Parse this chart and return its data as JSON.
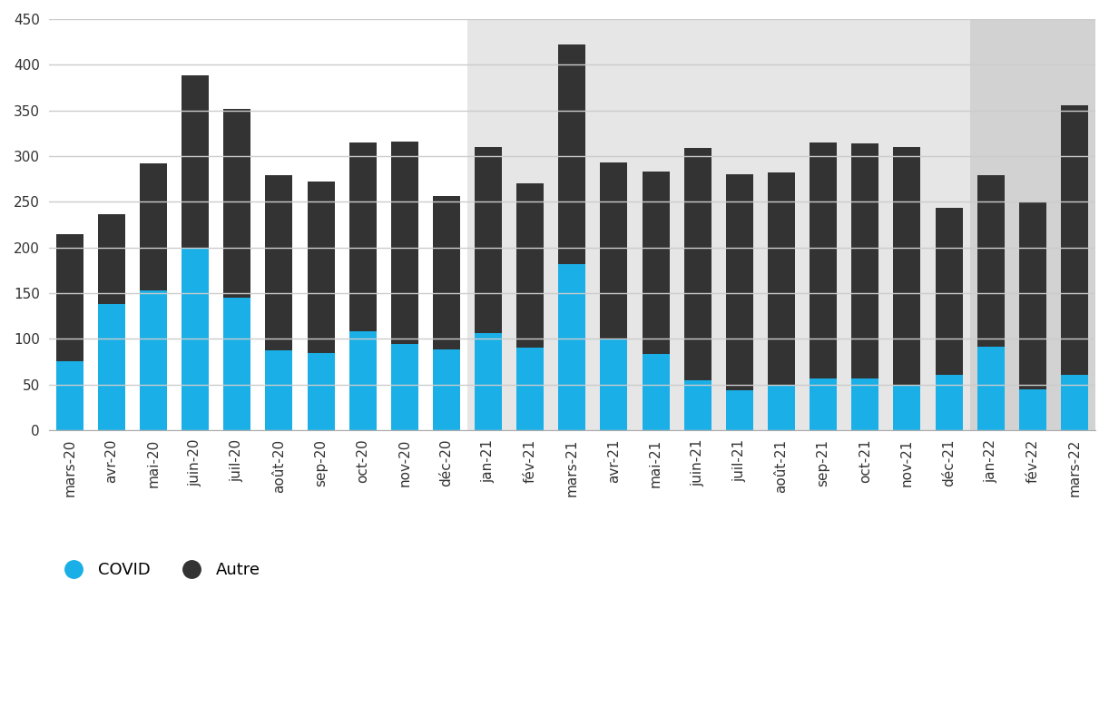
{
  "categories": [
    "mars-20",
    "avr-20",
    "mai-20",
    "juin-20",
    "juil-20",
    "août-20",
    "sep-20",
    "oct-20",
    "nov-20",
    "déc-20",
    "jan-21",
    "fév-21",
    "mars-21",
    "avr-21",
    "mai-21",
    "juin-21",
    "juil-21",
    "août-21",
    "sep-21",
    "oct-21",
    "nov-21",
    "déc-21",
    "jan-22",
    "fév-22",
    "mars-22"
  ],
  "covid": [
    75,
    138,
    153,
    200,
    145,
    87,
    84,
    108,
    94,
    88,
    106,
    90,
    182,
    99,
    83,
    55,
    44,
    50,
    57,
    57,
    50,
    60,
    91,
    45,
    60
  ],
  "autre": [
    140,
    98,
    139,
    188,
    207,
    192,
    188,
    207,
    222,
    168,
    204,
    180,
    240,
    194,
    200,
    254,
    236,
    232,
    258,
    257,
    260,
    183,
    188,
    204,
    296
  ],
  "bg_color_1": "#ffffff",
  "bg_color_2": "#e6e6e6",
  "bg_color_3": "#d2d2d2",
  "bar_color_covid": "#1aafe6",
  "bar_color_autre": "#333333",
  "grid_color": "#cccccc",
  "ylim": [
    0,
    450
  ],
  "yticks": [
    0,
    50,
    100,
    150,
    200,
    250,
    300,
    350,
    400,
    450
  ],
  "legend_covid": "COVID",
  "legend_autre": "Autre",
  "bar_width": 0.65
}
